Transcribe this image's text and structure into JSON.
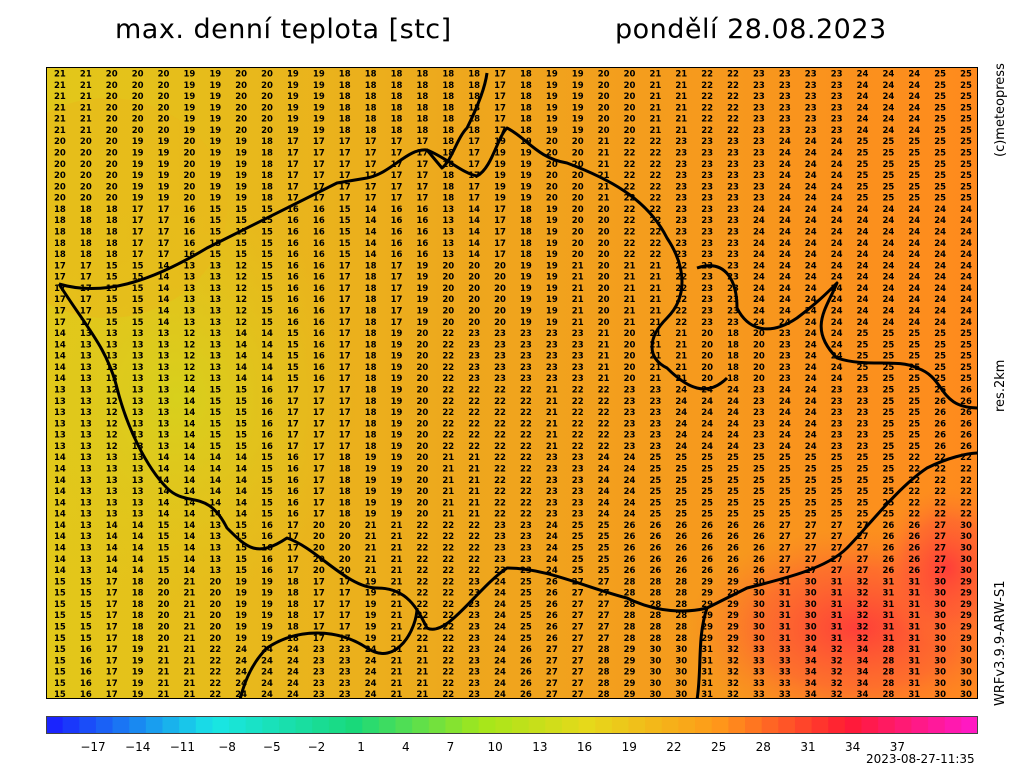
{
  "header": {
    "title": "max. denní teplota [stc]",
    "date": "pondělí 28.08.2023"
  },
  "side_labels": {
    "copyright": "(c)meteopress",
    "resolution": "res.2km",
    "model": "WRFv3.9.9-ARW-S1"
  },
  "timestamp": "2023-08-27-11:35",
  "map": {
    "unit": "stc",
    "sample_grid_rows": [
      "21 21 20 20 20 19 19 20 20 19 19 18 18 18 18 18 18 17 18 19 19 20 20 21 21 22 22 23 23 23 23 24 24 24 25 25",
      "20 20 20 19 19 20 19 19 18 17 17 17 17 17 17 18 17 19 19 20 20 21 22 22 23 23 23 23 24 24 24 25 25 25 25 25",
      "18 18 18 17 17 16 15 15 15 16 16 15 14 16 16 13 14 17 18 19 20 20 22 22 23 23 23 24 24 24 24 24 24 24 24 24",
      "17 17 15 15 14 13 13 12 15 16 16 17 18 17 19 20 20 20 19 19 21 20 21 21 22 23 23 24 24 24 24 24 24 24 24 24",
      "14 13 13 13 13 12 13 14 14 15 16 17 18 19 20 22 23 23 23 23 23 21 20 21 21 20 18 20 23 24 24 25 25 25 25 25",
      "13 13 12 13 13 14 15 15 16 17 17 17 18 19 20 22 22 22 22 21 22 22 23 23 24 24 24 23 24 24 23 23 25 25 26 26",
      "14 13 13 13 14 14 14 14 15 16 17 18 19 19 20 21 21 22 22 23 23 24 24 25 25 25 25 25 25 25 25 25 25 22 22 22",
      "14 13 14 14 15 14 13 15 16 17 20 20 21 21 22 22 22 23 23 24 25 25 26 26 26 26 26 26 27 27 27 27 26 26 27 30",
      "15 15 17 18 20 21 20 19 19 18 17 17 19 21 22 22 23 24 25 26 27 27 28 28 28 29 29 30 31 30 31 32 31 31 30 29",
      "15 16 17 19 21 21 22 24 24 24 23 23 24 21 21 22 23 24 26 27 27 28 29 30 30 31 32 33 33 34 32 34 28 31 30 30"
    ]
  },
  "colorbar": {
    "tick_labels": [
      "−17",
      "−14",
      "−11",
      "−8",
      "−5",
      "−2",
      "1",
      "4",
      "7",
      "10",
      "13",
      "16",
      "19",
      "22",
      "25",
      "28",
      "31",
      "34",
      "37"
    ],
    "colors": {
      "cold_blue": "#1a1aff",
      "cyan": "#19e6e6",
      "green": "#19d97a",
      "yellow_green": "#a6e61a",
      "yellow": "#e6d91a",
      "orange": "#ff9919",
      "red": "#ff1a33",
      "magenta": "#ff19cc"
    }
  }
}
